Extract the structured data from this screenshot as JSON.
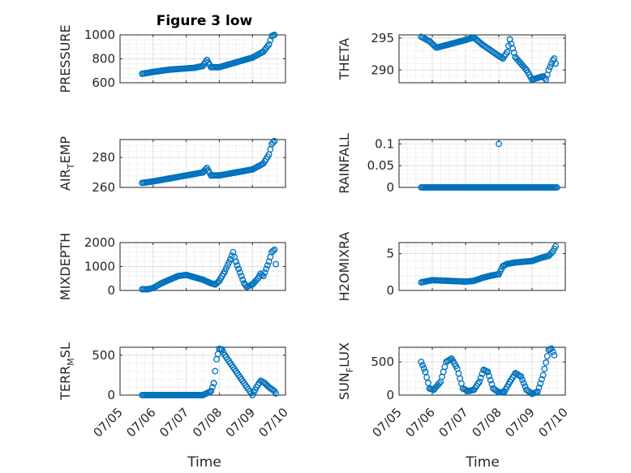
{
  "figure": {
    "title": "Figure 3 low",
    "xlabel": "Time",
    "date_ticks": [
      "07/05",
      "07/06",
      "07/07",
      "07/08",
      "07/09",
      "07/10"
    ],
    "marker_color": "#0072bd"
  },
  "chart_data": [
    {
      "type": "scatter",
      "ylabel": {
        "main": "PRESSURE",
        "sub": ""
      },
      "ylim": [
        600,
        1000
      ],
      "yticks": [
        "600",
        "800",
        "1000"
      ],
      "grid": true,
      "series": [
        {
          "x": [
            "07/05 16:00",
            "07/06 00:00",
            "07/06 12:00",
            "07/07 00:00",
            "07/07 06:00",
            "07/07 12:00",
            "07/07 15:00",
            "07/07 18:00",
            "07/08 00:00",
            "07/08 12:00",
            "07/09 00:00",
            "07/09 08:00",
            "07/09 12:00",
            "07/09 14:00",
            "07/09 16:00"
          ],
          "y": [
            675,
            690,
            710,
            720,
            725,
            740,
            790,
            730,
            730,
            770,
            810,
            860,
            920,
            990,
            1000
          ]
        }
      ]
    },
    {
      "type": "scatter",
      "ylabel": {
        "main": "THETA",
        "sub": ""
      },
      "ylim": [
        288,
        295.5
      ],
      "yticks": [
        "290",
        "295"
      ],
      "grid": true,
      "series": [
        {
          "x": [
            "07/05 16:00",
            "07/05 22:00",
            "07/06 03:00",
            "07/06 12:00",
            "07/07 00:00",
            "07/07 06:00",
            "07/07 12:00",
            "07/08 00:00",
            "07/08 03:00",
            "07/08 06:00",
            "07/08 08:00",
            "07/08 12:00",
            "07/08 20:00",
            "07/09 00:00",
            "07/09 03:00",
            "07/09 08:00",
            "07/09 10:00",
            "07/09 12:00",
            "07/09 15:00",
            "07/09 16:00",
            "07/09 17:00"
          ],
          "y": [
            295.2,
            294.5,
            293.5,
            294.0,
            294.7,
            295.1,
            294.0,
            292.2,
            291.8,
            292.8,
            294.8,
            292.0,
            290.0,
            288.5,
            288.7,
            289.0,
            288.5,
            290.0,
            291.5,
            291.8,
            291.0
          ]
        }
      ]
    },
    {
      "type": "scatter",
      "ylabel": {
        "main": "AIR",
        "sub": "T",
        "tail": "EMP"
      },
      "ylim": [
        260,
        292
      ],
      "yticks": [
        "260",
        "280"
      ],
      "grid": true,
      "series": [
        {
          "x": [
            "07/05 16:00",
            "07/06 00:00",
            "07/06 12:00",
            "07/07 00:00",
            "07/07 06:00",
            "07/07 12:00",
            "07/07 15:00",
            "07/07 18:00",
            "07/08 00:00",
            "07/08 12:00",
            "07/09 00:00",
            "07/09 08:00",
            "07/09 12:00",
            "07/09 14:00",
            "07/09 16:00"
          ],
          "y": [
            263,
            264,
            266,
            268,
            269,
            270,
            273,
            268,
            268,
            270,
            272,
            276,
            282,
            289,
            291
          ]
        }
      ]
    },
    {
      "type": "scatter",
      "ylabel": {
        "main": "RAINFALL",
        "sub": ""
      },
      "ylim": [
        0,
        0.11
      ],
      "yticks": [
        "0",
        "0.05",
        "0.1"
      ],
      "grid": true,
      "series": [
        {
          "x": [
            "07/05 16:00",
            "07/06 06:00",
            "07/06 18:00",
            "07/07 06:00",
            "07/07 18:00",
            "07/08 06:00",
            "07/08 12:00",
            "07/08 18:00",
            "07/09 06:00",
            "07/09 18:00",
            "07/08 00:00"
          ],
          "y": [
            0,
            0,
            0,
            0,
            0,
            0,
            0,
            0,
            0,
            0,
            0.1
          ]
        }
      ]
    },
    {
      "type": "scatter",
      "ylabel": {
        "main": "MIXDEPTH",
        "sub": ""
      },
      "ylim": [
        0,
        2000
      ],
      "yticks": [
        "0",
        "1000",
        "2000"
      ],
      "grid": true,
      "series": [
        {
          "x": [
            "07/05 16:00",
            "07/05 20:00",
            "07/06 00:00",
            "07/06 06:00",
            "07/06 12:00",
            "07/06 18:00",
            "07/07 00:00",
            "07/07 06:00",
            "07/07 12:00",
            "07/07 18:00",
            "07/07 21:00",
            "07/08 00:00",
            "07/08 04:00",
            "07/08 08:00",
            "07/08 10:00",
            "07/08 12:00",
            "07/08 14:00",
            "07/08 16:00",
            "07/08 18:00",
            "07/08 20:00",
            "07/09 00:00",
            "07/09 04:00",
            "07/09 06:00",
            "07/09 08:00",
            "07/09 10:00",
            "07/09 12:00",
            "07/09 14:00",
            "07/09 16:00",
            "07/09 17:00"
          ],
          "y": [
            50,
            50,
            100,
            300,
            450,
            600,
            650,
            550,
            450,
            300,
            250,
            400,
            800,
            1300,
            1600,
            1200,
            900,
            600,
            300,
            150,
            250,
            500,
            700,
            600,
            900,
            1200,
            1600,
            1700,
            1100
          ]
        }
      ]
    },
    {
      "type": "scatter",
      "ylabel": {
        "main": "H2OMIXRA",
        "sub": ""
      },
      "ylim": [
        0,
        6.5
      ],
      "yticks": [
        "0",
        "5"
      ],
      "grid": true,
      "series": [
        {
          "x": [
            "07/05 16:00",
            "07/06 00:00",
            "07/06 12:00",
            "07/07 00:00",
            "07/07 06:00",
            "07/07 12:00",
            "07/07 18:00",
            "07/08 00:00",
            "07/08 03:00",
            "07/08 06:00",
            "07/08 12:00",
            "07/09 00:00",
            "07/09 06:00",
            "07/09 12:00",
            "07/09 15:00",
            "07/09 17:00"
          ],
          "y": [
            1.1,
            1.4,
            1.3,
            1.2,
            1.3,
            1.7,
            2.0,
            2.2,
            3.3,
            3.6,
            3.8,
            4.0,
            4.4,
            4.7,
            5.3,
            6.0
          ]
        }
      ]
    },
    {
      "type": "scatter",
      "ylabel": {
        "main": "TERR",
        "sub": "M",
        "tail": "SL"
      },
      "ylim": [
        0,
        600
      ],
      "yticks": [
        "0",
        "500"
      ],
      "grid": true,
      "series": [
        {
          "x": [
            "07/05 16:00",
            "07/06 00:00",
            "07/06 12:00",
            "07/07 00:00",
            "07/07 12:00",
            "07/07 18:00",
            "07/07 20:00",
            "07/07 22:00",
            "07/08 00:00",
            "07/08 02:00",
            "07/08 04:00",
            "07/08 08:00",
            "07/08 12:00",
            "07/08 16:00",
            "07/08 20:00",
            "07/09 00:00",
            "07/09 03:00",
            "07/09 06:00",
            "07/09 09:00",
            "07/09 12:00",
            "07/09 16:00",
            "07/09 17:00"
          ],
          "y": [
            0,
            0,
            0,
            0,
            0,
            50,
            150,
            450,
            580,
            570,
            500,
            400,
            300,
            200,
            100,
            0,
            100,
            180,
            150,
            100,
            50,
            20
          ]
        }
      ]
    },
    {
      "type": "scatter",
      "ylabel": {
        "main": "SUN",
        "sub": "F",
        "tail": "LUX"
      },
      "ylim": [
        0,
        720
      ],
      "yticks": [
        "0",
        "500"
      ],
      "grid": true,
      "series": [
        {
          "x": [
            "07/05 16:00",
            "07/05 19:00",
            "07/05 22:00",
            "07/06 01:00",
            "07/06 06:00",
            "07/06 10:00",
            "07/06 14:00",
            "07/06 18:00",
            "07/06 22:00",
            "07/07 02:00",
            "07/07 06:00",
            "07/07 10:00",
            "07/07 13:00",
            "07/07 16:00",
            "07/07 20:00",
            "07/08 00:00",
            "07/08 04:00",
            "07/08 08:00",
            "07/08 12:00",
            "07/08 16:00",
            "07/08 20:00",
            "07/09 00:00",
            "07/09 04:00",
            "07/09 08:00",
            "07/09 12:00",
            "07/09 14:00",
            "07/09 16:00"
          ],
          "y": [
            500,
            350,
            100,
            80,
            200,
            500,
            550,
            400,
            100,
            60,
            80,
            200,
            380,
            350,
            100,
            40,
            50,
            200,
            330,
            280,
            80,
            20,
            50,
            300,
            680,
            700,
            600
          ]
        }
      ]
    }
  ]
}
